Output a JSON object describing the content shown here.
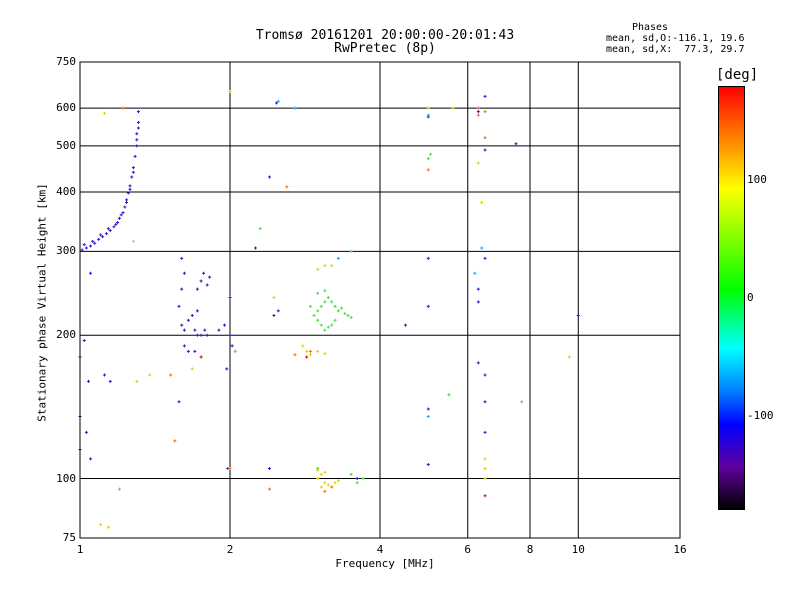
{
  "header": {
    "title_line1": "Tromsø 20161201 20:00:00-20:01:43",
    "title_line2": "RwPretec (8p)",
    "phases_title": "Phases",
    "phases_o": "mean, sd,O:-116.1, 19.6",
    "phases_x": "mean, sd,X:  77.3, 29.7"
  },
  "colorbar": {
    "label": "[deg]",
    "ticks": [
      {
        "label": "100",
        "value": 100
      },
      {
        "label": "0",
        "value": 0
      },
      {
        "label": "-100",
        "value": -100
      }
    ]
  },
  "chart_data": {
    "type": "scatter",
    "title": "Tromsø 20161201 20:00:00-20:01:43",
    "subtitle": "RwPretec (8p)",
    "xlabel": "Frequency [MHz]",
    "ylabel": "Stationary phase Virtual Height [km]",
    "xscale": "log",
    "yscale": "log",
    "xlim": [
      1,
      16
    ],
    "ylim": [
      75,
      750
    ],
    "xticks": [
      1,
      2,
      4,
      6,
      8,
      10,
      16
    ],
    "yticks": [
      75,
      100,
      200,
      300,
      400,
      500,
      600,
      750
    ],
    "grid_x": [
      2,
      4,
      6,
      8,
      10
    ],
    "grid_y": [
      100,
      200,
      300,
      400,
      500,
      600
    ],
    "colors": {
      "o_mode": "#3a10c8",
      "x_mode": "#e0d000",
      "x_mode_alt": "#40e040"
    },
    "series": [
      {
        "color": "#3a10c8",
        "points": [
          [
            1.01,
            302
          ],
          [
            1.03,
            305
          ],
          [
            1.05,
            308
          ],
          [
            1.07,
            312
          ],
          [
            1.09,
            318
          ],
          [
            1.11,
            322
          ],
          [
            1.13,
            327
          ],
          [
            1.15,
            332
          ],
          [
            1.17,
            338
          ],
          [
            1.19,
            345
          ],
          [
            1.2,
            352
          ],
          [
            1.22,
            362
          ],
          [
            1.23,
            372
          ],
          [
            1.24,
            385
          ],
          [
            1.25,
            398
          ],
          [
            1.26,
            412
          ],
          [
            1.27,
            430
          ],
          [
            1.28,
            450
          ],
          [
            1.29,
            475
          ],
          [
            1.3,
            500
          ],
          [
            1.3,
            530
          ],
          [
            1.31,
            560
          ],
          [
            1.31,
            590
          ],
          [
            1.02,
            310
          ],
          [
            1.06,
            315
          ],
          [
            1.1,
            325
          ],
          [
            1.14,
            335
          ],
          [
            1.18,
            342
          ],
          [
            1.21,
            358
          ],
          [
            1.24,
            380
          ],
          [
            1.26,
            405
          ],
          [
            1.28,
            440
          ],
          [
            1.3,
            515
          ],
          [
            1.31,
            545
          ],
          [
            1.0,
            180
          ],
          [
            1.02,
            195
          ],
          [
            1.04,
            160
          ],
          [
            1.0,
            135
          ],
          [
            1.03,
            125
          ],
          [
            1.0,
            115
          ],
          [
            1.05,
            110
          ],
          [
            1.12,
            165
          ],
          [
            1.15,
            160
          ],
          [
            1.05,
            270
          ],
          [
            1.6,
            290
          ],
          [
            1.62,
            270
          ],
          [
            1.6,
            250
          ],
          [
            1.58,
            230
          ],
          [
            1.6,
            210
          ],
          [
            1.62,
            205
          ],
          [
            1.65,
            215
          ],
          [
            1.7,
            205
          ],
          [
            1.72,
            200
          ],
          [
            1.75,
            200
          ],
          [
            1.78,
            205
          ],
          [
            1.8,
            200
          ],
          [
            1.62,
            190
          ],
          [
            1.65,
            185
          ],
          [
            1.7,
            185
          ],
          [
            1.72,
            250
          ],
          [
            1.75,
            260
          ],
          [
            1.77,
            270
          ],
          [
            1.8,
            255
          ],
          [
            1.82,
            265
          ],
          [
            1.9,
            205
          ],
          [
            1.95,
            210
          ],
          [
            1.68,
            220
          ],
          [
            1.72,
            225
          ],
          [
            1.58,
            145
          ],
          [
            1.97,
            170
          ],
          [
            2.0,
            240
          ],
          [
            2.0,
            200
          ],
          [
            2.02,
            190
          ],
          [
            2.05,
            185
          ],
          [
            1.98,
            105
          ],
          [
            2.25,
            305
          ],
          [
            2.4,
            430
          ],
          [
            2.45,
            220
          ],
          [
            2.4,
            105
          ],
          [
            2.48,
            615
          ],
          [
            2.5,
            225
          ],
          [
            3.6,
            100
          ],
          [
            4.5,
            210
          ],
          [
            5.0,
            575
          ],
          [
            5.0,
            230
          ],
          [
            5.0,
            140
          ],
          [
            5.0,
            107
          ],
          [
            5.0,
            290
          ],
          [
            6.3,
            590
          ],
          [
            6.3,
            250
          ],
          [
            6.3,
            175
          ],
          [
            6.3,
            235
          ],
          [
            6.5,
            635
          ],
          [
            6.5,
            290
          ],
          [
            6.5,
            165
          ],
          [
            6.5,
            145
          ],
          [
            6.5,
            125
          ],
          [
            6.5,
            490
          ],
          [
            7.5,
            505
          ],
          [
            10.0,
            220
          ]
        ]
      },
      {
        "color": "#e0d000",
        "points": [
          [
            3.0,
            100
          ],
          [
            3.05,
            102
          ],
          [
            3.1,
            98
          ],
          [
            3.15,
            97
          ],
          [
            3.2,
            96
          ],
          [
            3.25,
            98
          ],
          [
            3.3,
            99
          ],
          [
            3.0,
            104
          ],
          [
            3.05,
            96
          ],
          [
            3.1,
            103
          ],
          [
            2.8,
            190
          ],
          [
            2.85,
            185
          ],
          [
            2.9,
            182
          ],
          [
            3.0,
            185
          ],
          [
            3.1,
            183
          ],
          [
            1.1,
            80
          ],
          [
            1.14,
            79
          ],
          [
            1.12,
            585
          ],
          [
            1.28,
            315
          ],
          [
            1.38,
            165
          ],
          [
            1.3,
            160
          ],
          [
            1.68,
            170
          ],
          [
            2.05,
            185
          ],
          [
            2.45,
            240
          ],
          [
            3.0,
            275
          ],
          [
            3.1,
            280
          ],
          [
            3.2,
            280
          ],
          [
            5.0,
            600
          ],
          [
            6.3,
            460
          ],
          [
            6.4,
            380
          ],
          [
            6.5,
            110
          ],
          [
            6.5,
            100
          ],
          [
            6.5,
            105
          ],
          [
            9.6,
            180
          ],
          [
            5.6,
            600
          ],
          [
            2.0,
            650
          ]
        ]
      },
      {
        "color": "#40e040",
        "points": [
          [
            3.0,
            225
          ],
          [
            3.05,
            230
          ],
          [
            3.1,
            235
          ],
          [
            3.15,
            240
          ],
          [
            3.2,
            235
          ],
          [
            3.25,
            230
          ],
          [
            3.3,
            225
          ],
          [
            3.35,
            228
          ],
          [
            3.4,
            222
          ],
          [
            3.45,
            220
          ],
          [
            3.5,
            218
          ],
          [
            3.0,
            215
          ],
          [
            3.05,
            210
          ],
          [
            3.1,
            205
          ],
          [
            3.15,
            208
          ],
          [
            3.2,
            210
          ],
          [
            3.25,
            215
          ],
          [
            3.0,
            245
          ],
          [
            3.1,
            248
          ],
          [
            2.95,
            220
          ],
          [
            2.9,
            230
          ],
          [
            3.6,
            98
          ],
          [
            3.7,
            100
          ],
          [
            3.5,
            102
          ],
          [
            5.0,
            470
          ],
          [
            5.05,
            480
          ],
          [
            5.5,
            150
          ],
          [
            7.7,
            145
          ],
          [
            3.5,
            300
          ],
          [
            2.3,
            335
          ],
          [
            1.2,
            95
          ],
          [
            3.0,
            105
          ]
        ]
      },
      {
        "color": "#ff6a00",
        "points": [
          [
            2.9,
            185
          ],
          [
            2.7,
            182
          ],
          [
            2.4,
            95
          ],
          [
            2.6,
            410
          ],
          [
            5.0,
            445
          ],
          [
            6.3,
            600
          ],
          [
            6.3,
            580
          ],
          [
            6.5,
            590
          ],
          [
            6.5,
            520
          ],
          [
            1.55,
            120
          ],
          [
            1.52,
            165
          ],
          [
            2.0,
            105
          ],
          [
            1.22,
            600
          ],
          [
            3.2,
            96
          ],
          [
            3.1,
            94
          ]
        ]
      },
      {
        "color": "#00b0ff",
        "points": [
          [
            5.0,
            580
          ],
          [
            2.5,
            620
          ],
          [
            6.4,
            305
          ],
          [
            6.2,
            270
          ],
          [
            5.0,
            135
          ],
          [
            3.3,
            290
          ],
          [
            2.7,
            600
          ]
        ]
      },
      {
        "color": "#e00000",
        "points": [
          [
            6.5,
            92
          ],
          [
            2.85,
            180
          ],
          [
            1.75,
            180
          ]
        ]
      }
    ]
  }
}
